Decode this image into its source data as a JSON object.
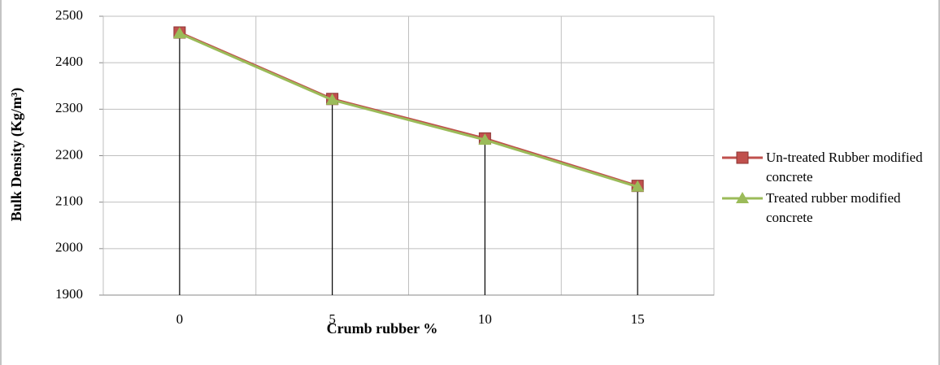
{
  "chart_data": {
    "type": "line",
    "x_label": "Crumb rubber %",
    "y_label": "Bulk Density (Kg/m³)",
    "categories": [
      "0",
      "5",
      "10",
      "15"
    ],
    "series": [
      {
        "name": "Un-treated Rubber modified concrete",
        "color": "#c0504d",
        "marker": "square",
        "values": [
          2465,
          2322,
          2237,
          2135
        ]
      },
      {
        "name": "Treated rubber modified concrete",
        "color": "#9bbb59",
        "marker": "triangle",
        "values": [
          2463,
          2320,
          2234,
          2133
        ]
      }
    ],
    "ylim": [
      1900,
      2500
    ],
    "yticks": [
      1900,
      2000,
      2100,
      2200,
      2300,
      2400,
      2500
    ],
    "grid": true,
    "drop_lines": true,
    "legend": "right"
  }
}
